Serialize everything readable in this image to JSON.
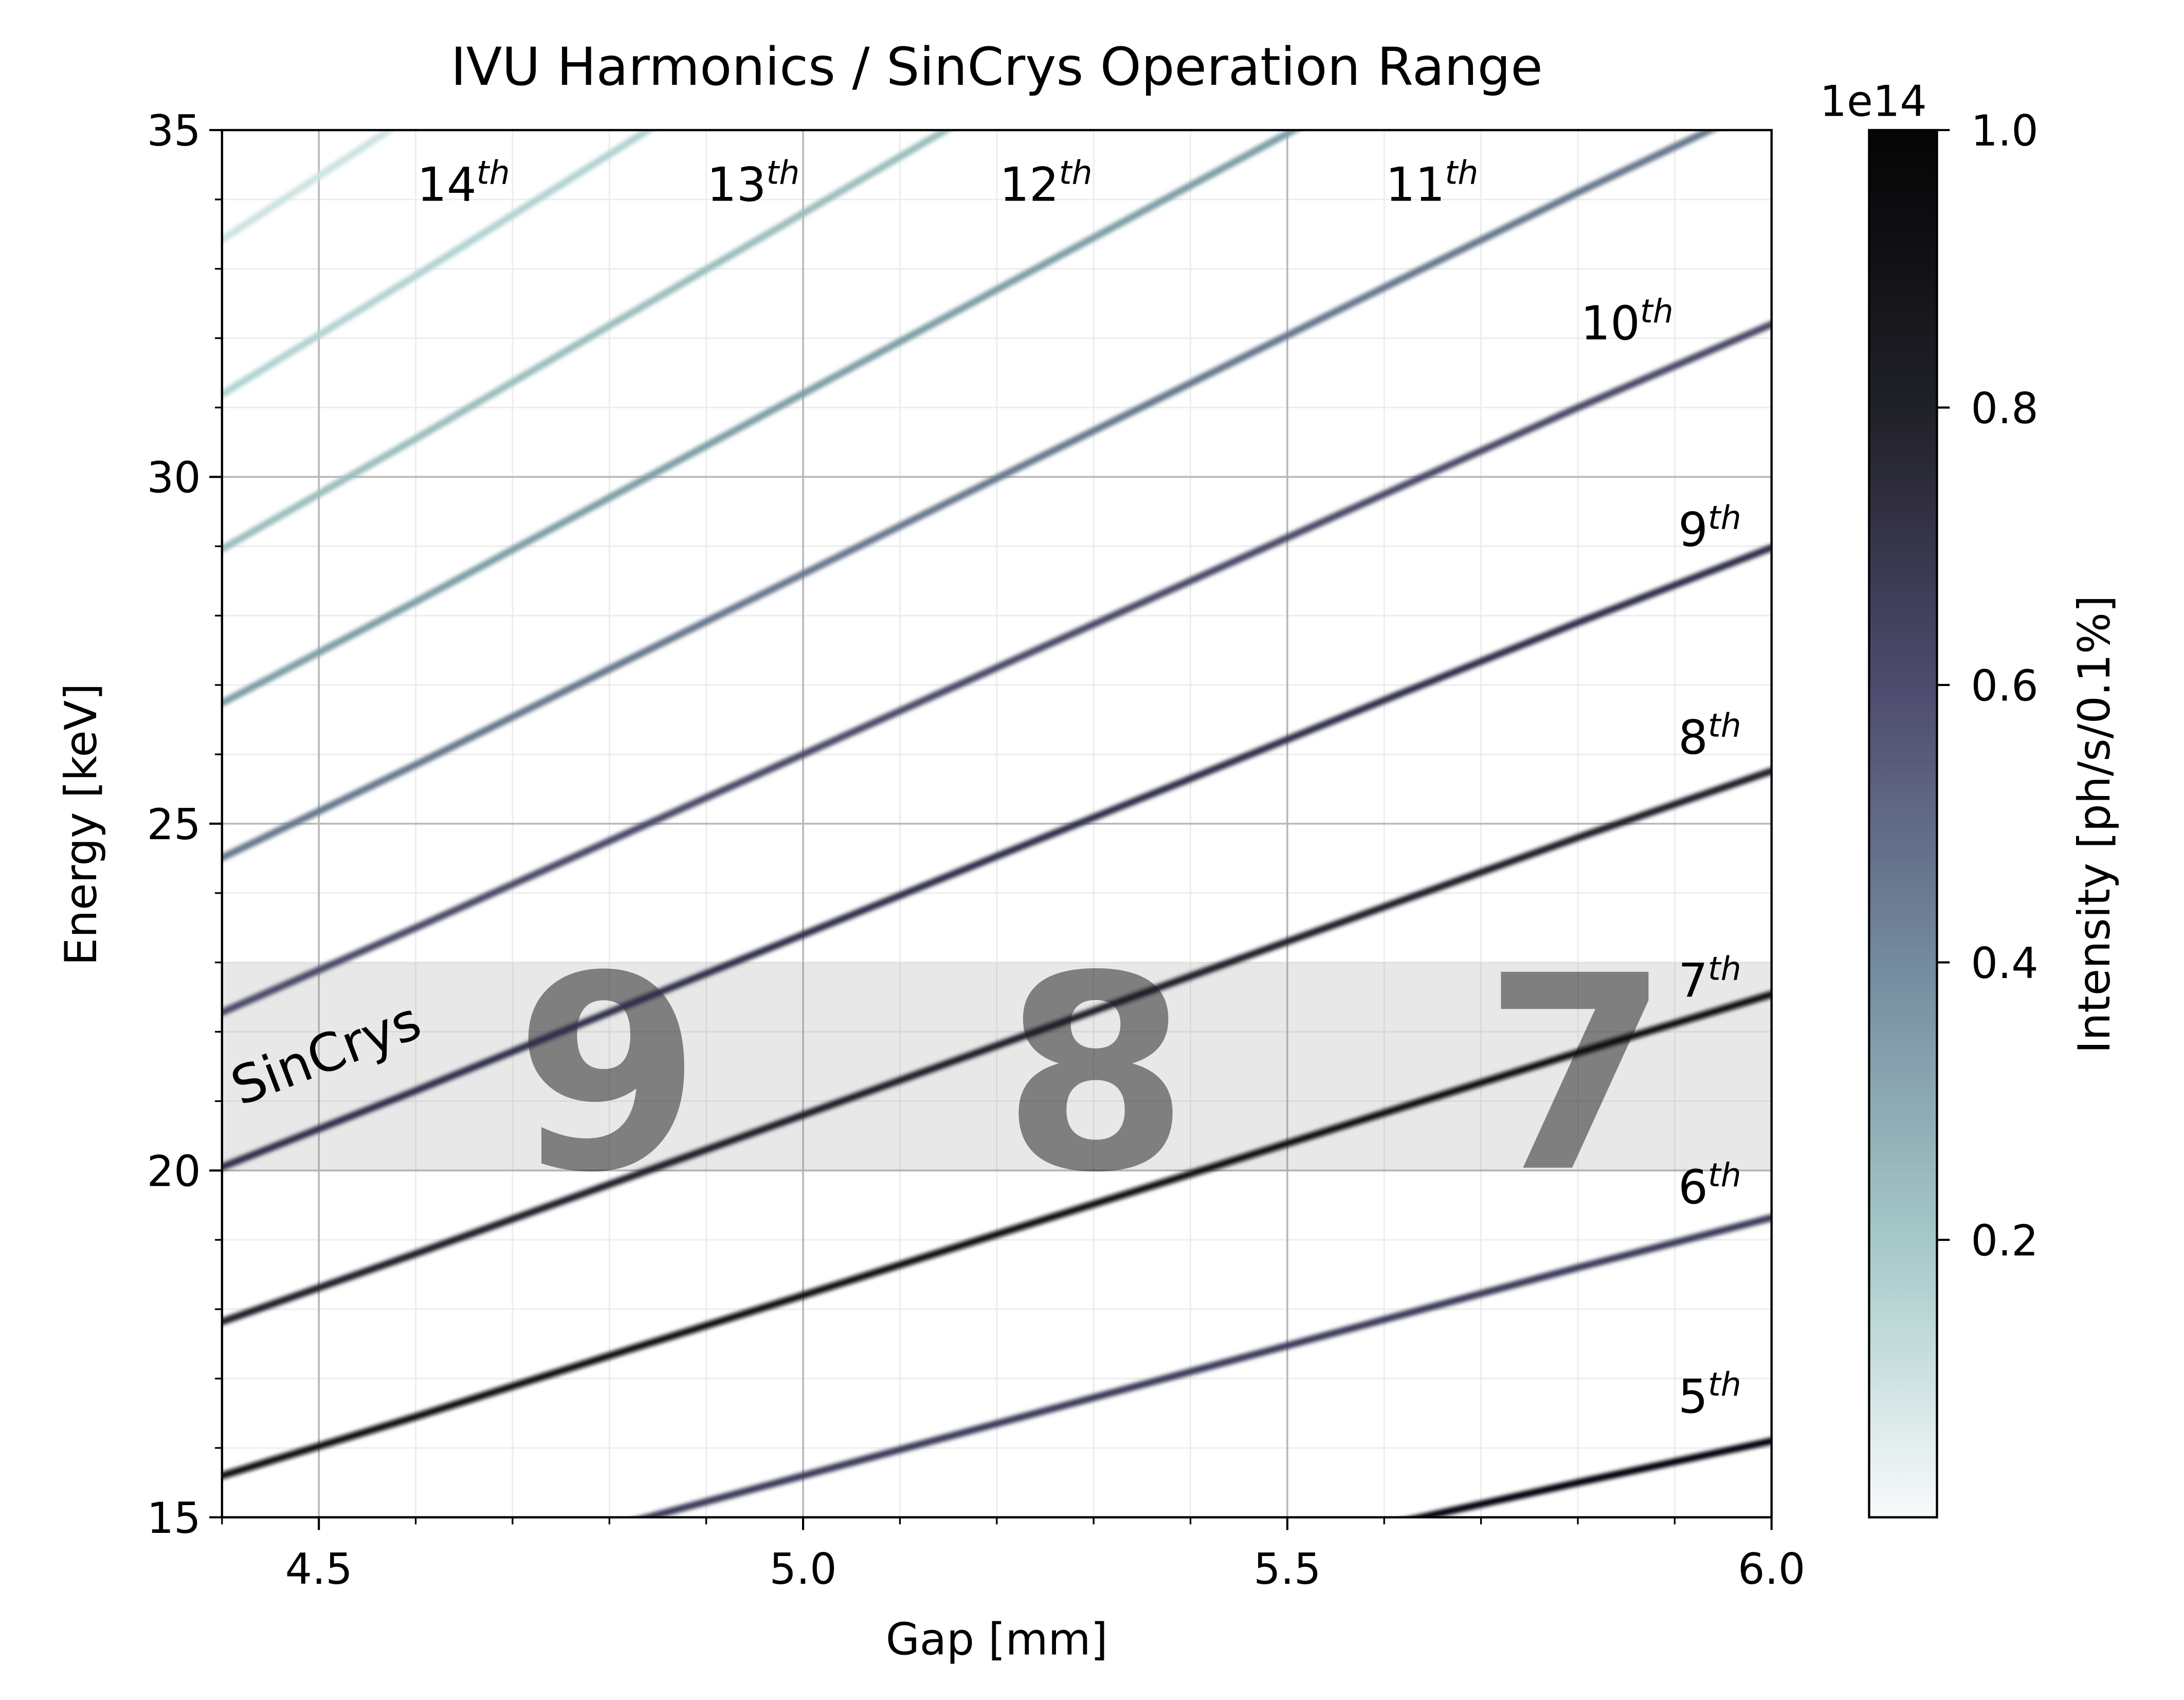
{
  "chart_data": {
    "type": "harmonic-map",
    "title": "IVU Harmonics / SinCrys Operation Range",
    "x_label": "Gap [mm]",
    "y_label": "Energy [keV]",
    "xlim": [
      4.4,
      6.0
    ],
    "ylim": [
      15,
      35
    ],
    "xticks": [
      4.5,
      {
        "value": 5.0,
        "label": "5.0"
      },
      5.5,
      {
        "value": 6.0,
        "label": "6.0"
      }
    ],
    "yticks": [
      15,
      20,
      25,
      30,
      35
    ],
    "xminorticks": [
      4.4,
      4.5,
      4.6,
      4.7,
      4.8,
      4.9,
      5.0,
      5.1,
      5.2,
      5.3,
      5.4,
      5.5,
      5.6,
      5.7,
      5.8,
      5.9,
      6.0
    ],
    "yminorticks": [
      15,
      16,
      17,
      18,
      19,
      20,
      21,
      22,
      23,
      24,
      25,
      26,
      27,
      28,
      29,
      30,
      31,
      32,
      33,
      34,
      35
    ],
    "grid": true,
    "x": [
      4.4,
      4.6,
      4.8,
      5.0,
      5.2,
      5.4,
      5.6,
      5.8,
      6.0
    ],
    "series": [
      {
        "color": "#050507",
        "values": [
          11.14,
          11.75,
          12.38,
          13.0,
          13.63,
          14.25,
          14.88,
          15.5,
          16.1
        ]
      },
      {
        "color": "#3b3a5a",
        "values": [
          13.37,
          14.1,
          14.85,
          15.6,
          16.35,
          17.1,
          17.85,
          18.6,
          19.32
        ]
      },
      {
        "color": "#0a0a0e",
        "values": [
          15.6,
          16.45,
          17.33,
          18.2,
          19.08,
          19.95,
          20.83,
          21.7,
          22.54
        ]
      },
      {
        "color": "#1a1a28",
        "values": [
          17.82,
          18.8,
          19.8,
          20.8,
          21.8,
          22.8,
          23.8,
          24.8,
          25.76
        ]
      },
      {
        "color": "#2e2e48",
        "values": [
          20.05,
          21.15,
          22.28,
          23.4,
          24.53,
          25.65,
          26.78,
          27.9,
          28.98
        ]
      },
      {
        "color": "#4a4a68",
        "values": [
          22.28,
          23.5,
          24.75,
          26.0,
          27.25,
          28.5,
          29.75,
          31.0,
          32.2
        ]
      },
      {
        "color": "#66788c",
        "values": [
          24.51,
          25.85,
          27.23,
          28.6,
          29.98,
          31.35,
          32.73,
          34.1,
          35.42
        ]
      },
      {
        "color": "#7d9ea6",
        "values": [
          26.74,
          28.2,
          29.7,
          31.2,
          32.7,
          34.2,
          35.7,
          37.2,
          38.64
        ]
      },
      {
        "color": "#9bbdbd",
        "values": [
          28.96,
          30.55,
          32.18,
          33.8,
          35.43,
          37.05,
          38.68,
          40.3,
          41.86
        ]
      },
      {
        "color": "#b3d2d2",
        "values": [
          31.19,
          32.9,
          34.65,
          36.4,
          38.15,
          39.9,
          41.65,
          43.4,
          45.08
        ]
      },
      {
        "color": "#cde2e2",
        "values": [
          33.42,
          35.25,
          37.13,
          39.0,
          40.88,
          42.75,
          44.63,
          46.5,
          48.3
        ]
      }
    ],
    "harmonic_labels": [
      {
        "text": "14",
        "sup": "th"
      },
      {
        "text": "13",
        "sup": "th"
      },
      {
        "text": "12",
        "sup": "th"
      },
      {
        "text": "11",
        "sup": "th"
      },
      {
        "text": "10",
        "sup": "th"
      },
      {
        "text": "9",
        "sup": "th"
      },
      {
        "text": "8",
        "sup": "th"
      },
      {
        "text": "7",
        "sup": "th"
      },
      {
        "text": "6",
        "sup": "th"
      },
      {
        "text": "5",
        "sup": "th"
      }
    ],
    "band": {
      "label": "SinCrys",
      "y": [
        20,
        23
      ],
      "orders": [
        "9",
        "8",
        "7"
      ]
    },
    "colorbar": {
      "label": "Intensity [ph/s/0.1%]",
      "offset_text": "1e14",
      "lim": [
        0,
        1
      ],
      "ticks": [
        0.2,
        0.4,
        0.6,
        0.8,
        {
          "value": 1,
          "label": "1.0"
        }
      ],
      "colormap": [
        "#f8fbfb",
        "#a5c8c8",
        "#748a9e",
        "#4e4b6e",
        "#202028",
        "#050505"
      ]
    }
  }
}
